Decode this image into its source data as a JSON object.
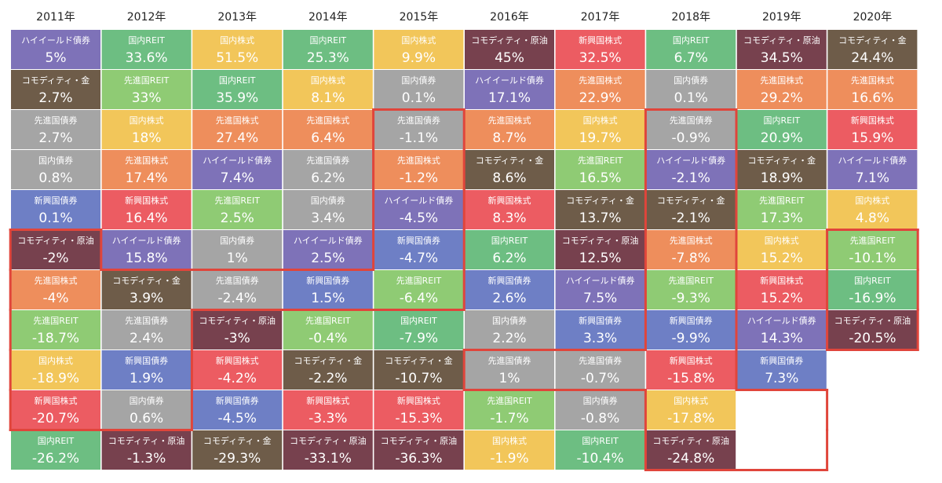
{
  "colors": {
    "国内株式": "#F2C65A",
    "先進国株式": "#EE8E5C",
    "新興国株式": "#EC5C62",
    "国内債券": "#A5A5A5",
    "先進国債券": "#A5A5A5",
    "新興国債券": "#6E7FC5",
    "国内REIT": "#6DBE82",
    "先進国REIT": "#8FCB74",
    "ハイイールド債券": "#7E72B8",
    "コモディティ・金": "#6E5C49",
    "コモディティ・原油": "#77414E",
    "highlight": "#E0453B"
  },
  "chart_data": {
    "type": "table",
    "columns": [
      "2011年",
      "2012年",
      "2013年",
      "2014年",
      "2015年",
      "2016年",
      "2017年",
      "2018年",
      "2019年",
      "2020年"
    ],
    "cells": [
      [
        {
          "name": "ハイイールド債券",
          "value": "5%"
        },
        {
          "name": "コモディティ・金",
          "value": "2.7%"
        },
        {
          "name": "先進国債券",
          "value": "2.7%"
        },
        {
          "name": "国内債券",
          "value": "0.8%"
        },
        {
          "name": "新興国債券",
          "value": "0.1%"
        },
        {
          "name": "コモディティ・原油",
          "value": "-2%"
        },
        {
          "name": "先進国株式",
          "value": "-4%"
        },
        {
          "name": "先進国REIT",
          "value": "-18.7%"
        },
        {
          "name": "国内株式",
          "value": "-18.9%"
        },
        {
          "name": "新興国株式",
          "value": "-20.7%"
        },
        {
          "name": "国内REIT",
          "value": "-26.2%"
        }
      ],
      [
        {
          "name": "国内REIT",
          "value": "33.6%"
        },
        {
          "name": "先進国REIT",
          "value": "33%"
        },
        {
          "name": "国内株式",
          "value": "18%"
        },
        {
          "name": "先進国株式",
          "value": "17.4%"
        },
        {
          "name": "新興国株式",
          "value": "16.4%"
        },
        {
          "name": "ハイイールド債券",
          "value": "15.8%"
        },
        {
          "name": "コモディティ・金",
          "value": "3.9%"
        },
        {
          "name": "先進国債券",
          "value": "2.4%"
        },
        {
          "name": "新興国債券",
          "value": "1.9%"
        },
        {
          "name": "国内債券",
          "value": "0.6%"
        },
        {
          "name": "コモディティ・原油",
          "value": "-1.3%"
        }
      ],
      [
        {
          "name": "国内株式",
          "value": "51.5%"
        },
        {
          "name": "国内REIT",
          "value": "35.9%"
        },
        {
          "name": "先進国株式",
          "value": "27.4%"
        },
        {
          "name": "ハイイールド債券",
          "value": "7.4%"
        },
        {
          "name": "先進国REIT",
          "value": "2.5%"
        },
        {
          "name": "国内債券",
          "value": "1%"
        },
        {
          "name": "先進国債券",
          "value": "-2.4%"
        },
        {
          "name": "コモディティ・原油",
          "value": "-3%"
        },
        {
          "name": "新興国株式",
          "value": "-4.2%"
        },
        {
          "name": "新興国債券",
          "value": "-4.5%"
        },
        {
          "name": "コモディティ・金",
          "value": "-29.3%"
        }
      ],
      [
        {
          "name": "国内REIT",
          "value": "25.3%"
        },
        {
          "name": "国内株式",
          "value": "8.1%"
        },
        {
          "name": "先進国株式",
          "value": "6.4%"
        },
        {
          "name": "先進国債券",
          "value": "6.2%"
        },
        {
          "name": "国内債券",
          "value": "3.4%"
        },
        {
          "name": "ハイイールド債券",
          "value": "2.5%"
        },
        {
          "name": "新興国債券",
          "value": "1.5%"
        },
        {
          "name": "先進国REIT",
          "value": "-0.4%"
        },
        {
          "name": "コモディティ・金",
          "value": "-2.2%"
        },
        {
          "name": "新興国株式",
          "value": "-3.3%"
        },
        {
          "name": "コモディティ・原油",
          "value": "-33.1%"
        }
      ],
      [
        {
          "name": "国内株式",
          "value": "9.9%"
        },
        {
          "name": "国内債券",
          "value": "0.1%"
        },
        {
          "name": "先進国債券",
          "value": "-1.1%"
        },
        {
          "name": "先進国株式",
          "value": "-1.2%"
        },
        {
          "name": "ハイイールド債券",
          "value": "-4.5%"
        },
        {
          "name": "新興国債券",
          "value": "-4.7%"
        },
        {
          "name": "先進国REIT",
          "value": "-6.4%"
        },
        {
          "name": "国内REIT",
          "value": "-7.9%"
        },
        {
          "name": "コモディティ・金",
          "value": "-10.7%"
        },
        {
          "name": "新興国株式",
          "value": "-15.3%"
        },
        {
          "name": "コモディティ・原油",
          "value": "-36.3%"
        }
      ],
      [
        {
          "name": "コモディティ・原油",
          "value": "45%"
        },
        {
          "name": "ハイイールド債券",
          "value": "17.1%"
        },
        {
          "name": "先進国株式",
          "value": "8.7%"
        },
        {
          "name": "コモディティ・金",
          "value": "8.6%"
        },
        {
          "name": "新興国株式",
          "value": "8.3%"
        },
        {
          "name": "国内REIT",
          "value": "6.2%"
        },
        {
          "name": "新興国債券",
          "value": "2.6%"
        },
        {
          "name": "国内債券",
          "value": "2.2%"
        },
        {
          "name": "先進国債券",
          "value": "1%"
        },
        {
          "name": "先進国REIT",
          "value": "-1.7%"
        },
        {
          "name": "国内株式",
          "value": "-1.9%"
        }
      ],
      [
        {
          "name": "新興国株式",
          "value": "32.5%"
        },
        {
          "name": "先進国株式",
          "value": "22.9%"
        },
        {
          "name": "国内株式",
          "value": "19.7%"
        },
        {
          "name": "先進国REIT",
          "value": "16.5%"
        },
        {
          "name": "コモディティ・金",
          "value": "13.7%"
        },
        {
          "name": "コモディティ・原油",
          "value": "12.5%"
        },
        {
          "name": "ハイイールド債券",
          "value": "7.5%"
        },
        {
          "name": "新興国債券",
          "value": "3.3%"
        },
        {
          "name": "先進国債券",
          "value": "-0.7%"
        },
        {
          "name": "国内債券",
          "value": "-0.8%"
        },
        {
          "name": "国内REIT",
          "value": "-10.4%"
        }
      ],
      [
        {
          "name": "国内REIT",
          "value": "6.7%"
        },
        {
          "name": "国内債券",
          "value": "0.1%"
        },
        {
          "name": "先進国債券",
          "value": "-0.9%"
        },
        {
          "name": "ハイイールド債券",
          "value": "-2.1%"
        },
        {
          "name": "コモディティ・金",
          "value": "-2.1%"
        },
        {
          "name": "先進国株式",
          "value": "-7.8%"
        },
        {
          "name": "先進国REIT",
          "value": "-9.3%"
        },
        {
          "name": "新興国債券",
          "value": "-9.9%"
        },
        {
          "name": "新興国株式",
          "value": "-15.8%"
        },
        {
          "name": "国内株式",
          "value": "-17.8%"
        },
        {
          "name": "コモディティ・原油",
          "value": "-24.8%"
        }
      ],
      [
        {
          "name": "コモディティ・原油",
          "value": "34.5%"
        },
        {
          "name": "先進国株式",
          "value": "29.2%"
        },
        {
          "name": "国内REIT",
          "value": "20.9%"
        },
        {
          "name": "コモディティ・金",
          "value": "18.9%"
        },
        {
          "name": "先進国REIT",
          "value": "17.3%"
        },
        {
          "name": "国内株式",
          "value": "15.2%"
        },
        {
          "name": "新興国株式",
          "value": "15.2%"
        },
        {
          "name": "ハイイールド債券",
          "value": "14.3%"
        },
        {
          "name": "新興国債券",
          "value": "7.3%"
        }
      ],
      [
        {
          "name": "コモディティ・金",
          "value": "24.4%"
        },
        {
          "name": "先進国株式",
          "value": "16.6%"
        },
        {
          "name": "新興国株式",
          "value": "15.9%"
        },
        {
          "name": "ハイイールド債券",
          "value": "7.1%"
        },
        {
          "name": "国内株式",
          "value": "4.8%"
        },
        {
          "name": "先進国REIT",
          "value": "-10.1%"
        },
        {
          "name": "国内REIT",
          "value": "-16.9%"
        },
        {
          "name": "コモディティ・原油",
          "value": "-20.5%"
        }
      ]
    ],
    "highlighted_cells": [
      [
        0,
        5
      ],
      [
        0,
        6
      ],
      [
        0,
        7
      ],
      [
        0,
        8
      ],
      [
        0,
        9
      ],
      [
        1,
        6
      ],
      [
        1,
        7
      ],
      [
        1,
        8
      ],
      [
        1,
        9
      ],
      [
        2,
        6
      ],
      [
        3,
        6
      ],
      [
        4,
        2
      ],
      [
        4,
        3
      ],
      [
        4,
        4
      ],
      [
        4,
        5
      ],
      [
        4,
        6
      ],
      [
        5,
        8
      ],
      [
        6,
        8
      ],
      [
        7,
        2
      ],
      [
        7,
        3
      ],
      [
        7,
        4
      ],
      [
        7,
        5
      ],
      [
        7,
        6
      ],
      [
        7,
        7
      ],
      [
        7,
        8
      ],
      [
        7,
        9
      ],
      [
        7,
        10
      ],
      [
        8,
        9
      ],
      [
        8,
        10
      ],
      [
        9,
        5
      ],
      [
        9,
        6
      ],
      [
        9,
        7
      ]
    ]
  }
}
